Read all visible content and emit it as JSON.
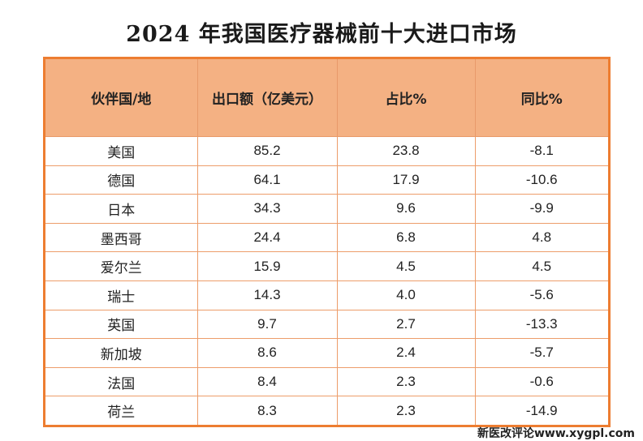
{
  "title": "2024 年我国医疗器械前十大进口市场",
  "table": {
    "headers": [
      "伙伴国/地",
      "出口额（亿美元）",
      "占比%",
      "同比%"
    ],
    "rows": [
      [
        "美国",
        "85.2",
        "23.8",
        "-8.1"
      ],
      [
        "德国",
        "64.1",
        "17.9",
        "-10.6"
      ],
      [
        "日本",
        "34.3",
        "9.6",
        "-9.9"
      ],
      [
        "墨西哥",
        "24.4",
        "6.8",
        "4.8"
      ],
      [
        "爱尔兰",
        "15.9",
        "4.5",
        "4.5"
      ],
      [
        "瑞士",
        "14.3",
        "4.0",
        "-5.6"
      ],
      [
        "英国",
        "9.7",
        "2.7",
        "-13.3"
      ],
      [
        "新加坡",
        "8.6",
        "2.4",
        "-5.7"
      ],
      [
        "法国",
        "8.4",
        "2.3",
        "-0.6"
      ],
      [
        "荷兰",
        "8.3",
        "2.3",
        "-14.9"
      ]
    ]
  },
  "colors": {
    "header_bg": "#f4b183",
    "border": "#ed7d31"
  },
  "watermark": "新医改评论www.xygpl.com"
}
